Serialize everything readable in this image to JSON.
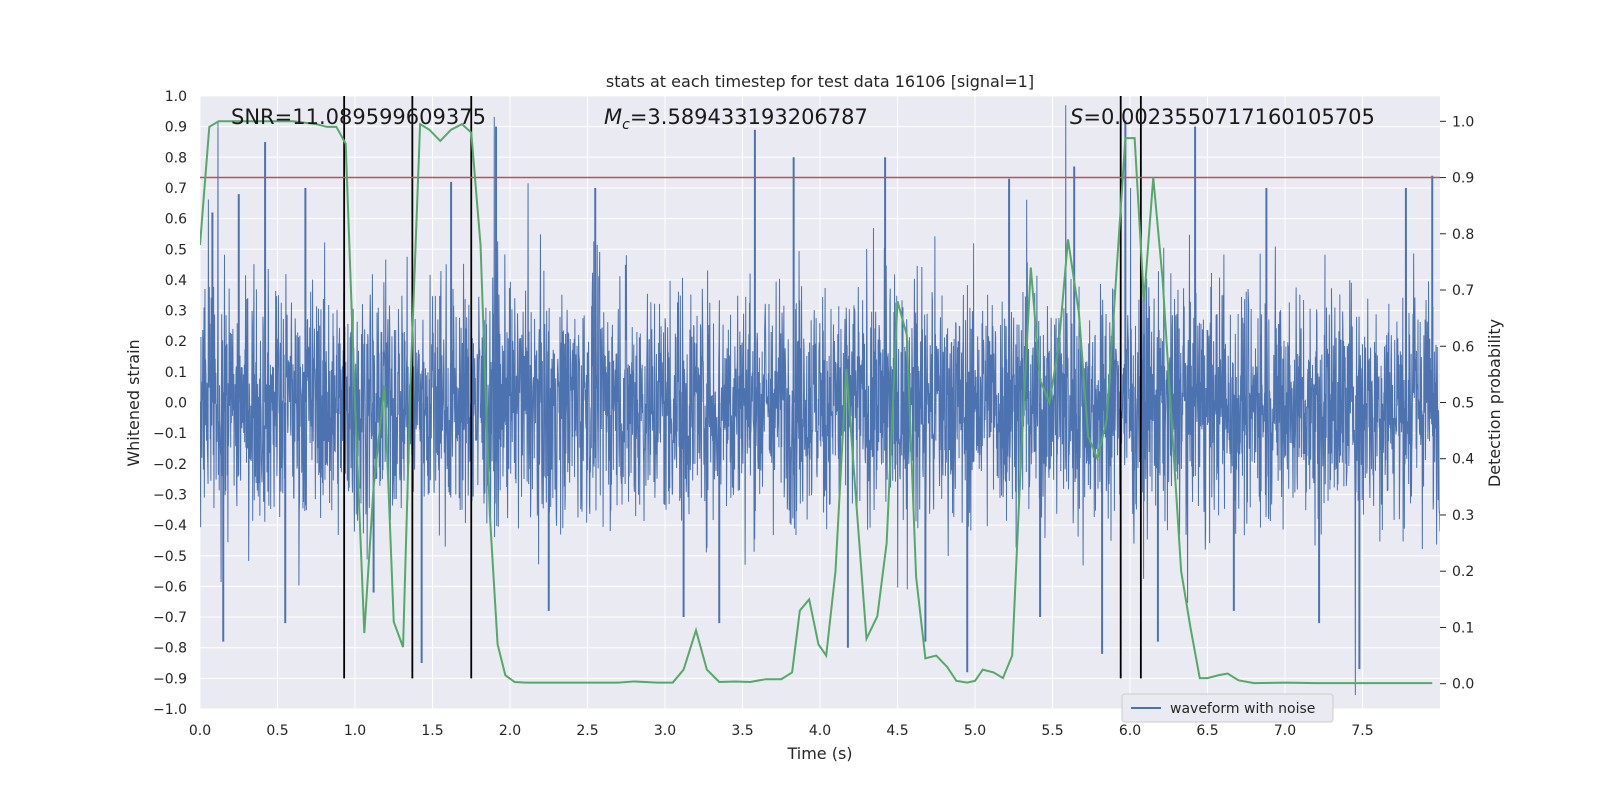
{
  "chart_data": {
    "type": "line",
    "title": "stats at each timestep for test data 16106 [signal=1]",
    "xlabel": "Time (s)",
    "ylabel": "Whitened strain",
    "y2label": "Detection probability",
    "xlim": [
      0.0,
      8.0
    ],
    "ylim": [
      -1.0,
      1.0
    ],
    "y2lim": [
      -0.045,
      1.045
    ],
    "xticks": [
      "0.0",
      "0.5",
      "1.0",
      "1.5",
      "2.0",
      "2.5",
      "3.0",
      "3.5",
      "4.0",
      "4.5",
      "5.0",
      "5.5",
      "6.0",
      "6.5",
      "7.0",
      "7.5"
    ],
    "yticks": [
      "-1.0",
      "-0.9",
      "-0.8",
      "-0.7",
      "-0.6",
      "-0.5",
      "-0.4",
      "-0.3",
      "-0.2",
      "-0.1",
      "0.0",
      "0.1",
      "0.2",
      "0.3",
      "0.4",
      "0.5",
      "0.6",
      "0.7",
      "0.8",
      "0.9",
      "1.0"
    ],
    "y2ticks": [
      "0.0",
      "0.1",
      "0.2",
      "0.3",
      "0.4",
      "0.5",
      "0.6",
      "0.7",
      "0.8",
      "0.9",
      "1.0"
    ],
    "legend": {
      "position": "lower-right",
      "entries": [
        {
          "label": "waveform with noise",
          "color": "#4c72b0"
        }
      ]
    },
    "annotations": {
      "snr": "SNR=11.089599609375",
      "mc_symbol": "M",
      "mc_sub": "c",
      "mc_value": "=3.589433193206787",
      "s_symbol": "S",
      "s_value": "=0.0023550717160105705"
    },
    "threshold": {
      "value": 0.9,
      "axis": "right",
      "color": "#c44e52"
    },
    "vertical_lines": [
      0.93,
      1.37,
      1.75,
      5.94,
      6.07
    ],
    "series": [
      {
        "name": "waveform with noise",
        "axis": "left",
        "color": "#4c72b0",
        "description": "dense whitened-strain noise, bulk amplitude about +/-0.35 with spikes up to about +/-0.9",
        "spike_x": [
          0.08,
          0.15,
          0.25,
          0.42,
          0.55,
          0.68,
          1.12,
          1.43,
          1.62,
          1.91,
          2.25,
          2.55,
          3.12,
          3.35,
          3.58,
          3.83,
          4.18,
          4.42,
          4.68,
          4.95,
          5.22,
          5.42,
          5.64,
          5.82,
          5.97,
          6.18,
          6.42,
          6.67,
          6.88,
          7.22,
          7.48,
          7.78,
          7.95
        ],
        "spike_y": [
          0.62,
          -0.78,
          0.68,
          0.85,
          -0.72,
          0.7,
          -0.62,
          -0.85,
          0.72,
          0.9,
          -0.68,
          0.7,
          -0.7,
          -0.72,
          0.89,
          0.8,
          -0.8,
          0.8,
          -0.78,
          -0.88,
          0.73,
          -0.7,
          0.77,
          -0.82,
          0.92,
          -0.78,
          0.9,
          -0.68,
          0.7,
          -0.72,
          -0.87,
          0.7,
          0.74
        ]
      },
      {
        "name": "detection probability",
        "axis": "right",
        "color": "#55a868",
        "x": [
          0.0,
          0.06,
          0.12,
          0.2,
          0.3,
          0.45,
          0.6,
          0.75,
          0.82,
          0.88,
          0.94,
          1.0,
          1.06,
          1.12,
          1.19,
          1.25,
          1.31,
          1.36,
          1.42,
          1.48,
          1.55,
          1.62,
          1.69,
          1.75,
          1.81,
          1.87,
          1.92,
          1.97,
          2.03,
          2.1,
          2.3,
          2.5,
          2.7,
          2.8,
          2.95,
          3.05,
          3.12,
          3.2,
          3.27,
          3.35,
          3.45,
          3.55,
          3.65,
          3.75,
          3.82,
          3.87,
          3.93,
          3.99,
          4.04,
          4.1,
          4.17,
          4.24,
          4.3,
          4.37,
          4.43,
          4.5,
          4.56,
          4.62,
          4.68,
          4.75,
          4.82,
          4.88,
          4.95,
          5.0,
          5.05,
          5.12,
          5.18,
          5.24,
          5.3,
          5.36,
          5.42,
          5.48,
          5.54,
          5.6,
          5.67,
          5.73,
          5.79,
          5.85,
          5.91,
          5.97,
          6.03,
          6.09,
          6.15,
          6.21,
          6.27,
          6.33,
          6.39,
          6.45,
          6.5,
          6.57,
          6.63,
          6.7,
          6.8,
          7.0,
          7.2,
          7.5,
          7.8,
          7.95
        ],
        "y": [
          0.78,
          0.99,
          1.0,
          1.0,
          1.0,
          1.0,
          1.0,
          0.995,
          0.99,
          0.99,
          0.96,
          0.5,
          0.09,
          0.35,
          0.53,
          0.11,
          0.065,
          0.55,
          0.995,
          0.985,
          0.965,
          0.985,
          0.995,
          0.98,
          0.78,
          0.3,
          0.07,
          0.015,
          0.003,
          0.002,
          0.002,
          0.002,
          0.002,
          0.004,
          0.002,
          0.002,
          0.025,
          0.095,
          0.025,
          0.003,
          0.004,
          0.003,
          0.008,
          0.008,
          0.02,
          0.13,
          0.15,
          0.07,
          0.05,
          0.2,
          0.56,
          0.3,
          0.08,
          0.12,
          0.25,
          0.68,
          0.62,
          0.19,
          0.045,
          0.05,
          0.03,
          0.005,
          0.002,
          0.005,
          0.025,
          0.02,
          0.01,
          0.05,
          0.42,
          0.74,
          0.54,
          0.5,
          0.6,
          0.79,
          0.66,
          0.44,
          0.4,
          0.47,
          0.72,
          0.97,
          0.97,
          0.68,
          0.9,
          0.72,
          0.46,
          0.2,
          0.1,
          0.01,
          0.01,
          0.015,
          0.018,
          0.006,
          0.001,
          0.002,
          0.001,
          0.001,
          0.001,
          0.001
        ]
      }
    ]
  }
}
